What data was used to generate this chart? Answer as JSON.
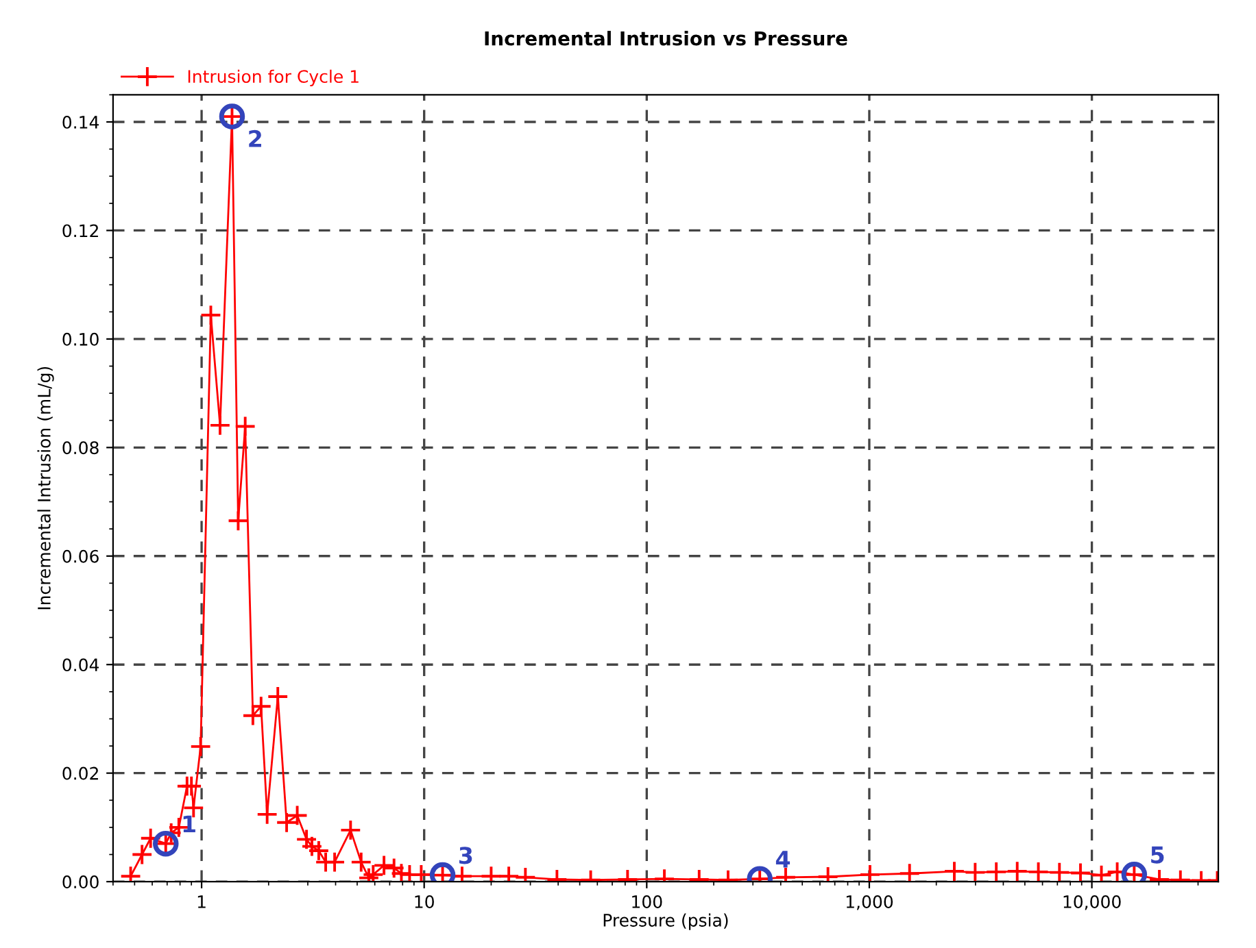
{
  "chart_data": {
    "type": "line",
    "title": "Incremental Intrusion vs Pressure",
    "xlabel": "Pressure (psia)",
    "ylabel": "Incremental Intrusion (mL/g)",
    "log": "x",
    "grid": true,
    "legend": "top left",
    "marker": "cross",
    "line_style": "solid",
    "xlim": [
      0.4,
      37000
    ],
    "ylim": [
      0,
      0.145
    ],
    "xticks": [
      1,
      10,
      100,
      {
        "value": 1000,
        "label": "1,000"
      },
      {
        "value": 10000,
        "label": "10,000"
      }
    ],
    "yticks": [
      {
        "value": 0,
        "label": "0.00"
      },
      {
        "value": 0.02,
        "label": "0.02"
      },
      {
        "value": 0.04,
        "label": "0.04"
      },
      {
        "value": 0.06,
        "label": "0.06"
      },
      {
        "value": 0.08,
        "label": "0.08"
      },
      {
        "value": 0.1,
        "label": "0.10"
      },
      {
        "value": 0.12,
        "label": "0.12"
      },
      {
        "value": 0.14,
        "label": "0.14"
      }
    ],
    "series": [
      {
        "name": "Intrusion for Cycle 1",
        "color": "#ff0000",
        "x": [
          0.48,
          0.54,
          0.59,
          0.69,
          0.73,
          0.79,
          0.86,
          0.9,
          0.92,
          0.99,
          1.1,
          1.21,
          1.37,
          1.46,
          1.57,
          1.7,
          1.85,
          1.97,
          2.2,
          2.41,
          2.69,
          2.96,
          3.13,
          3.36,
          3.61,
          3.96,
          4.67,
          5.21,
          5.64,
          5.9,
          6.6,
          7.32,
          7.9,
          8.6,
          9.7,
          12.1,
          14.8,
          20,
          24,
          28.5,
          39.5,
          56,
          82,
          120,
          172,
          232,
          322,
          421,
          652,
          1007,
          1517,
          2410,
          2990,
          3720,
          4620,
          5750,
          7150,
          8890,
          11040,
          13000,
          15500,
          20100,
          25000,
          31000,
          36600
        ],
        "values": [
          0.001,
          0.005,
          0.008,
          0.007,
          0.009,
          0.01,
          0.0176,
          0.0176,
          0.0136,
          0.0249,
          0.1044,
          0.0841,
          0.141,
          0.0665,
          0.0839,
          0.0306,
          0.0323,
          0.0124,
          0.0341,
          0.0109,
          0.0122,
          0.0078,
          0.0065,
          0.0057,
          0.0036,
          0.0036,
          0.0095,
          0.0036,
          0.0007,
          0.0013,
          0.003,
          0.0025,
          0.0015,
          0.0013,
          0.0013,
          0.0012,
          0.001,
          0.001,
          0.001,
          0.0008,
          0.0004,
          0.0003,
          0.0004,
          0.0005,
          0.0004,
          0.0003,
          0.0005,
          0.0008,
          0.0009,
          0.0013,
          0.0015,
          0.0019,
          0.0017,
          0.0018,
          0.0019,
          0.0018,
          0.0017,
          0.0016,
          0.0012,
          0.0018,
          0.0013,
          0.0004,
          0.0003,
          0.0002,
          0.0002
        ]
      }
    ],
    "annotations": [
      {
        "text": "1",
        "x": 0.69,
        "y": 0.007
      },
      {
        "text": "2",
        "x": 1.37,
        "y": 0.141
      },
      {
        "text": "3",
        "x": 12.1,
        "y": 0.0012
      },
      {
        "text": "4",
        "x": 322,
        "y": 0.0005
      },
      {
        "text": "5",
        "x": 15500,
        "y": 0.0013
      }
    ]
  }
}
